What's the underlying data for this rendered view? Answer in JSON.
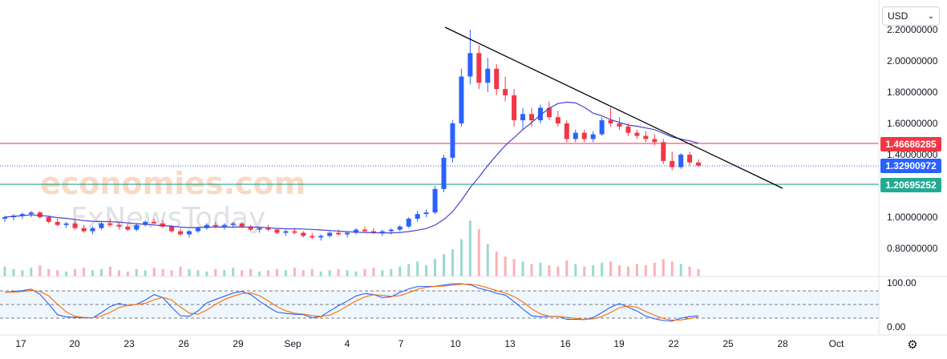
{
  "currency_selector": {
    "value": "USD"
  },
  "watermark": {
    "line1": "economies.com",
    "line2": "FxNewsToday"
  },
  "price_tags": [
    {
      "value": "1.46686285",
      "color": "#f23645"
    },
    {
      "value": "1.32900972",
      "color": "#2962ff"
    },
    {
      "value": "1.20695252",
      "color": "#22ab94"
    }
  ],
  "oscillator": {
    "upper_label": "100.00",
    "lower_label": "0.00"
  },
  "chart_data": {
    "type": "candlestick",
    "y_axis_ticks": [
      "2.20000000",
      "2.00000000",
      "1.80000000",
      "1.60000000",
      "1.40000000",
      "1.00000000",
      "0.80000000"
    ],
    "y_range": [
      0.68,
      2.22
    ],
    "x_axis_ticks": [
      "17",
      "20",
      "23",
      "26",
      "29",
      "Sep",
      "4",
      "7",
      "10",
      "13",
      "16",
      "19",
      "22",
      "25",
      "28",
      "Oct"
    ],
    "horizontal_lines": [
      {
        "value": 1.46686285,
        "color": "#f23645"
      },
      {
        "value": 1.32900972,
        "color": "#2962ff",
        "style": "dotted"
      },
      {
        "value": 1.20695252,
        "color": "#089981"
      }
    ],
    "trendline": {
      "from": {
        "x": "Sep 9",
        "y": 2.2
      },
      "to": {
        "x": "Sep 27",
        "y": 1.18
      },
      "color": "#000000"
    },
    "moving_average_color": "#4a43c9",
    "candles": [
      [
        0.99,
        1.01,
        0.97,
        1.0
      ],
      [
        1.0,
        1.02,
        0.98,
        1.01
      ],
      [
        1.01,
        1.03,
        0.99,
        1.02
      ],
      [
        1.02,
        1.04,
        1.0,
        1.03
      ],
      [
        1.03,
        1.04,
        0.99,
        1.0
      ],
      [
        1.0,
        1.01,
        0.96,
        0.97
      ],
      [
        0.97,
        0.99,
        0.94,
        0.95
      ],
      [
        0.95,
        0.97,
        0.93,
        0.96
      ],
      [
        0.96,
        0.98,
        0.92,
        0.93
      ],
      [
        0.93,
        0.95,
        0.9,
        0.91
      ],
      [
        0.91,
        0.94,
        0.89,
        0.93
      ],
      [
        0.93,
        0.97,
        0.92,
        0.96
      ],
      [
        0.96,
        0.99,
        0.94,
        0.95
      ],
      [
        0.95,
        0.97,
        0.92,
        0.94
      ],
      [
        0.94,
        0.96,
        0.91,
        0.92
      ],
      [
        0.92,
        0.96,
        0.91,
        0.95
      ],
      [
        0.95,
        0.98,
        0.94,
        0.97
      ],
      [
        0.97,
        0.99,
        0.95,
        0.96
      ],
      [
        0.96,
        0.98,
        0.93,
        0.94
      ],
      [
        0.94,
        0.95,
        0.9,
        0.91
      ],
      [
        0.91,
        0.93,
        0.88,
        0.89
      ],
      [
        0.89,
        0.92,
        0.87,
        0.91
      ],
      [
        0.91,
        0.94,
        0.9,
        0.93
      ],
      [
        0.93,
        0.96,
        0.92,
        0.95
      ],
      [
        0.95,
        0.97,
        0.93,
        0.94
      ],
      [
        0.94,
        0.96,
        0.92,
        0.95
      ],
      [
        0.95,
        0.97,
        0.93,
        0.96
      ],
      [
        0.96,
        0.97,
        0.93,
        0.94
      ],
      [
        0.94,
        0.95,
        0.91,
        0.92
      ],
      [
        0.92,
        0.94,
        0.9,
        0.93
      ],
      [
        0.93,
        0.95,
        0.91,
        0.92
      ],
      [
        0.92,
        0.93,
        0.89,
        0.9
      ],
      [
        0.9,
        0.92,
        0.88,
        0.91
      ],
      [
        0.91,
        0.93,
        0.89,
        0.9
      ],
      [
        0.9,
        0.91,
        0.87,
        0.88
      ],
      [
        0.88,
        0.9,
        0.86,
        0.87
      ],
      [
        0.87,
        0.89,
        0.85,
        0.88
      ],
      [
        0.88,
        0.91,
        0.87,
        0.9
      ],
      [
        0.9,
        0.92,
        0.88,
        0.89
      ],
      [
        0.89,
        0.91,
        0.87,
        0.9
      ],
      [
        0.9,
        0.93,
        0.89,
        0.92
      ],
      [
        0.92,
        0.94,
        0.9,
        0.91
      ],
      [
        0.91,
        0.93,
        0.89,
        0.9
      ],
      [
        0.9,
        0.92,
        0.88,
        0.91
      ],
      [
        0.91,
        0.93,
        0.89,
        0.92
      ],
      [
        0.92,
        0.95,
        0.91,
        0.94
      ],
      [
        0.94,
        1.0,
        0.93,
        0.99
      ],
      [
        0.99,
        1.04,
        0.97,
        1.02
      ],
      [
        1.02,
        1.05,
        1.0,
        1.03
      ],
      [
        1.03,
        1.2,
        1.02,
        1.18
      ],
      [
        1.18,
        1.4,
        1.16,
        1.38
      ],
      [
        1.38,
        1.62,
        1.35,
        1.6
      ],
      [
        1.6,
        1.95,
        1.58,
        1.9
      ],
      [
        1.9,
        2.2,
        1.85,
        2.05
      ],
      [
        2.05,
        2.1,
        1.82,
        1.86
      ],
      [
        1.86,
        2.02,
        1.8,
        1.95
      ],
      [
        1.95,
        1.98,
        1.78,
        1.82
      ],
      [
        1.82,
        1.9,
        1.74,
        1.78
      ],
      [
        1.78,
        1.82,
        1.58,
        1.62
      ],
      [
        1.62,
        1.7,
        1.56,
        1.66
      ],
      [
        1.66,
        1.7,
        1.58,
        1.62
      ],
      [
        1.62,
        1.72,
        1.6,
        1.7
      ],
      [
        1.7,
        1.74,
        1.62,
        1.64
      ],
      [
        1.64,
        1.68,
        1.58,
        1.6
      ],
      [
        1.6,
        1.62,
        1.48,
        1.5
      ],
      [
        1.5,
        1.56,
        1.48,
        1.54
      ],
      [
        1.54,
        1.56,
        1.48,
        1.5
      ],
      [
        1.5,
        1.55,
        1.48,
        1.53
      ],
      [
        1.53,
        1.64,
        1.52,
        1.62
      ],
      [
        1.62,
        1.7,
        1.58,
        1.6
      ],
      [
        1.6,
        1.64,
        1.56,
        1.58
      ],
      [
        1.58,
        1.6,
        1.52,
        1.54
      ],
      [
        1.54,
        1.56,
        1.5,
        1.52
      ],
      [
        1.52,
        1.55,
        1.48,
        1.5
      ],
      [
        1.5,
        1.53,
        1.46,
        1.48
      ],
      [
        1.48,
        1.5,
        1.34,
        1.36
      ],
      [
        1.36,
        1.42,
        1.3,
        1.32
      ],
      [
        1.32,
        1.41,
        1.31,
        1.4
      ],
      [
        1.4,
        1.42,
        1.33,
        1.35
      ],
      [
        1.35,
        1.37,
        1.32,
        1.33
      ]
    ],
    "volume": [
      8,
      6,
      5,
      7,
      9,
      6,
      5,
      4,
      6,
      7,
      5,
      6,
      8,
      5,
      4,
      6,
      5,
      7,
      6,
      5,
      8,
      6,
      5,
      4,
      6,
      5,
      7,
      5,
      6,
      4,
      5,
      6,
      5,
      7,
      5,
      6,
      4,
      5,
      6,
      5,
      4,
      6,
      7,
      5,
      6,
      8,
      10,
      12,
      9,
      14,
      18,
      22,
      30,
      45,
      38,
      26,
      20,
      16,
      14,
      12,
      10,
      11,
      9,
      8,
      13,
      10,
      8,
      9,
      11,
      12,
      9,
      8,
      10,
      9,
      11,
      14,
      12,
      10,
      8,
      6
    ]
  }
}
